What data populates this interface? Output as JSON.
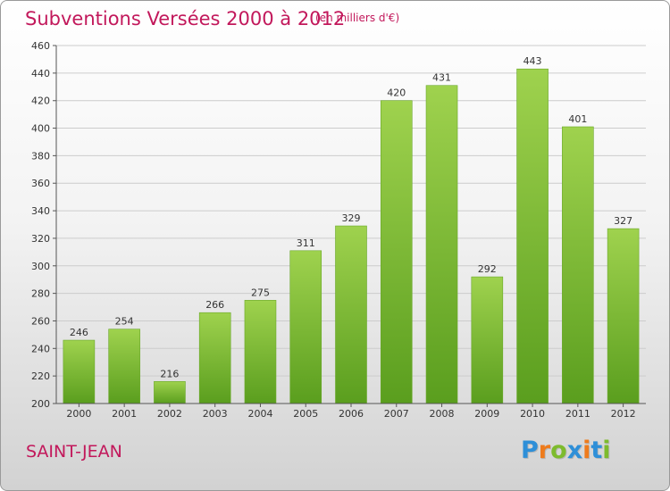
{
  "header": {
    "title": "Subventions Versées 2000 à 2012",
    "unit": "(en milliers d'€)"
  },
  "footer": {
    "commune": "SAINT-JEAN",
    "brand_letters": [
      "P",
      "r",
      "o",
      "x",
      "i",
      "t",
      "i"
    ],
    "brand_colors": [
      "#2e8fd8",
      "#ee7b1c",
      "#7dbb2d",
      "#2e8fd8",
      "#ee7b1c",
      "#2e8fd8",
      "#7dbb2d"
    ]
  },
  "colors": {
    "title": "#c2185b",
    "bar_top": "#9fd24e",
    "bar_bottom": "#5a9e1e",
    "grid": "#cccccc"
  },
  "chart_data": {
    "type": "bar",
    "title": "Subventions Versées 2000 à 2012",
    "xlabel": "",
    "ylabel": "",
    "categories": [
      "2000",
      "2001",
      "2002",
      "2003",
      "2004",
      "2005",
      "2006",
      "2007",
      "2008",
      "2009",
      "2010",
      "2011",
      "2012"
    ],
    "values": [
      246,
      254,
      216,
      266,
      275,
      311,
      329,
      420,
      431,
      292,
      443,
      401,
      327
    ],
    "ylim": [
      200,
      460
    ],
    "yticks": [
      200,
      220,
      240,
      260,
      280,
      300,
      320,
      340,
      360,
      380,
      400,
      420,
      440,
      460
    ],
    "grid": true,
    "legend": "none"
  }
}
